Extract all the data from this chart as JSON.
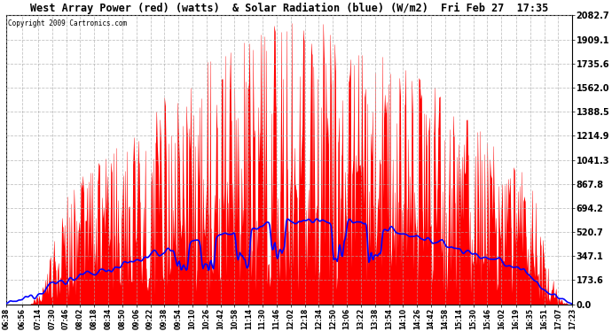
{
  "title": "West Array Power (red) (watts)  & Solar Radiation (blue) (W/m2)  Fri Feb 27  17:35",
  "copyright": "Copyright 2009 Cartronics.com",
  "bg_color": "#ffffff",
  "plot_bg_color": "#ffffff",
  "grid_color": "#aaaaaa",
  "red_color": "#ff0000",
  "blue_color": "#0000ff",
  "yticks": [
    0.0,
    173.6,
    347.1,
    520.7,
    694.2,
    867.8,
    1041.3,
    1214.9,
    1388.5,
    1562.0,
    1735.6,
    1909.1,
    2082.7
  ],
  "ymax": 2082.7,
  "ymin": 0.0,
  "tick_times_abs": [
    398,
    416,
    434,
    450,
    466,
    482,
    498,
    514,
    530,
    546,
    562,
    578,
    594,
    610,
    626,
    642,
    658,
    674,
    690,
    706,
    722,
    738,
    754,
    770,
    786,
    802,
    818,
    834,
    850,
    866,
    882,
    898,
    914,
    930,
    946,
    962,
    979,
    995,
    1011,
    1027,
    1043
  ],
  "tick_labels": [
    "06:38",
    "06:56",
    "07:14",
    "07:30",
    "07:46",
    "08:02",
    "08:18",
    "08:34",
    "08:50",
    "09:06",
    "09:22",
    "09:38",
    "09:54",
    "10:10",
    "10:26",
    "10:42",
    "10:58",
    "11:14",
    "11:30",
    "11:46",
    "12:02",
    "12:18",
    "12:34",
    "12:50",
    "13:06",
    "13:22",
    "13:38",
    "13:54",
    "14:10",
    "14:26",
    "14:42",
    "14:58",
    "15:14",
    "15:30",
    "15:46",
    "16:02",
    "16:19",
    "16:35",
    "16:51",
    "17:07",
    "17:23"
  ]
}
